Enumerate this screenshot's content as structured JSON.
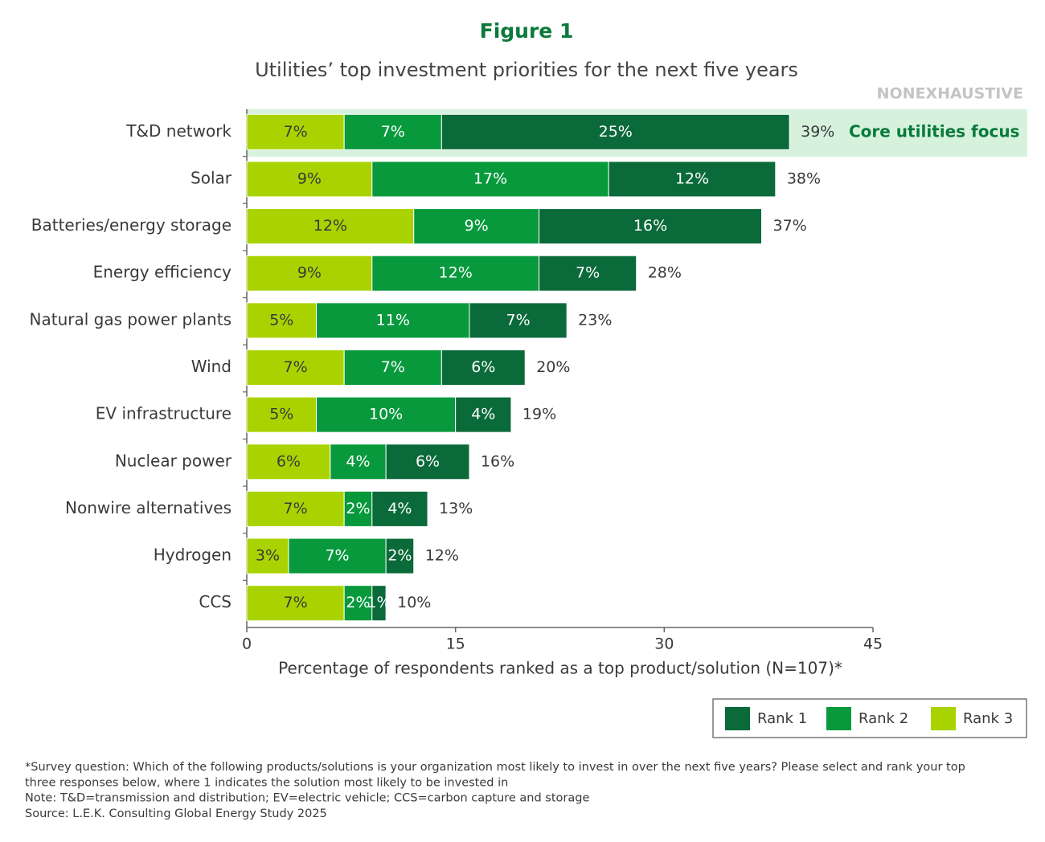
{
  "chart_data": {
    "type": "stacked-bar-horizontal",
    "title": "Figure 1",
    "subtitle": "Utilities’ top investment priorities for the next five years",
    "tag": "NONEXHAUSTIVE",
    "annotation": "Core utilities focus",
    "x_label": "Percentage of respondents ranked as a top product/solution (N=107)*",
    "categories": [
      "T&D network",
      "Solar",
      "Batteries/energy storage",
      "Energy efficiency",
      "Natural gas power plants",
      "Wind",
      "EV infrastructure",
      "Nuclear power",
      "Nonwire alternatives",
      "Hydrogen",
      "CCS"
    ],
    "series": [
      {
        "name": "Rank 3",
        "color": "#a9d300",
        "label_color": "#3a3a3a",
        "values": [
          7,
          9,
          12,
          9,
          5,
          7,
          5,
          6,
          7,
          3,
          7
        ],
        "value_labels": [
          "7%",
          "9%",
          "12%",
          "9%",
          "5%",
          "7%",
          "5%",
          "6%",
          "7%",
          "3%",
          "7%"
        ]
      },
      {
        "name": "Rank 2",
        "color": "#08993d",
        "label_color": "#ffffff",
        "values": [
          7,
          17,
          9,
          12,
          11,
          7,
          10,
          4,
          2,
          7,
          2
        ],
        "value_labels": [
          "7%",
          "17%",
          "9%",
          "12%",
          "11%",
          "7%",
          "10%",
          "4%",
          "2%",
          "7%",
          "2%"
        ]
      },
      {
        "name": "Rank 1",
        "color": "#0b6a3a",
        "label_color": "#ffffff",
        "values": [
          25,
          12,
          16,
          7,
          7,
          6,
          4,
          6,
          4,
          2,
          1
        ],
        "value_labels": [
          "25%",
          "12%",
          "16%",
          "7%",
          "7%",
          "6%",
          "4%",
          "6%",
          "4%",
          "2%",
          "1%"
        ]
      }
    ],
    "totals": [
      39,
      38,
      37,
      28,
      23,
      20,
      19,
      16,
      13,
      12,
      10
    ],
    "total_labels": [
      "39%",
      "38%",
      "37%",
      "28%",
      "23%",
      "20%",
      "19%",
      "16%",
      "13%",
      "12%",
      "10%"
    ],
    "xlim": [
      0,
      45
    ],
    "xticks": [
      0,
      15,
      30,
      45
    ],
    "footnotes": [
      "*Survey question: Which of the following products/solutions is your organization most likely to invest in over the next five years? Please select and rank your top",
      "three responses below, where 1 indicates the solution most likely to be invested in",
      "Note: T&D=transmission and distribution; EV=electric vehicle; CCS=carbon capture and storage",
      "Source: L.E.K. Consulting Global Energy Study 2025"
    ]
  }
}
